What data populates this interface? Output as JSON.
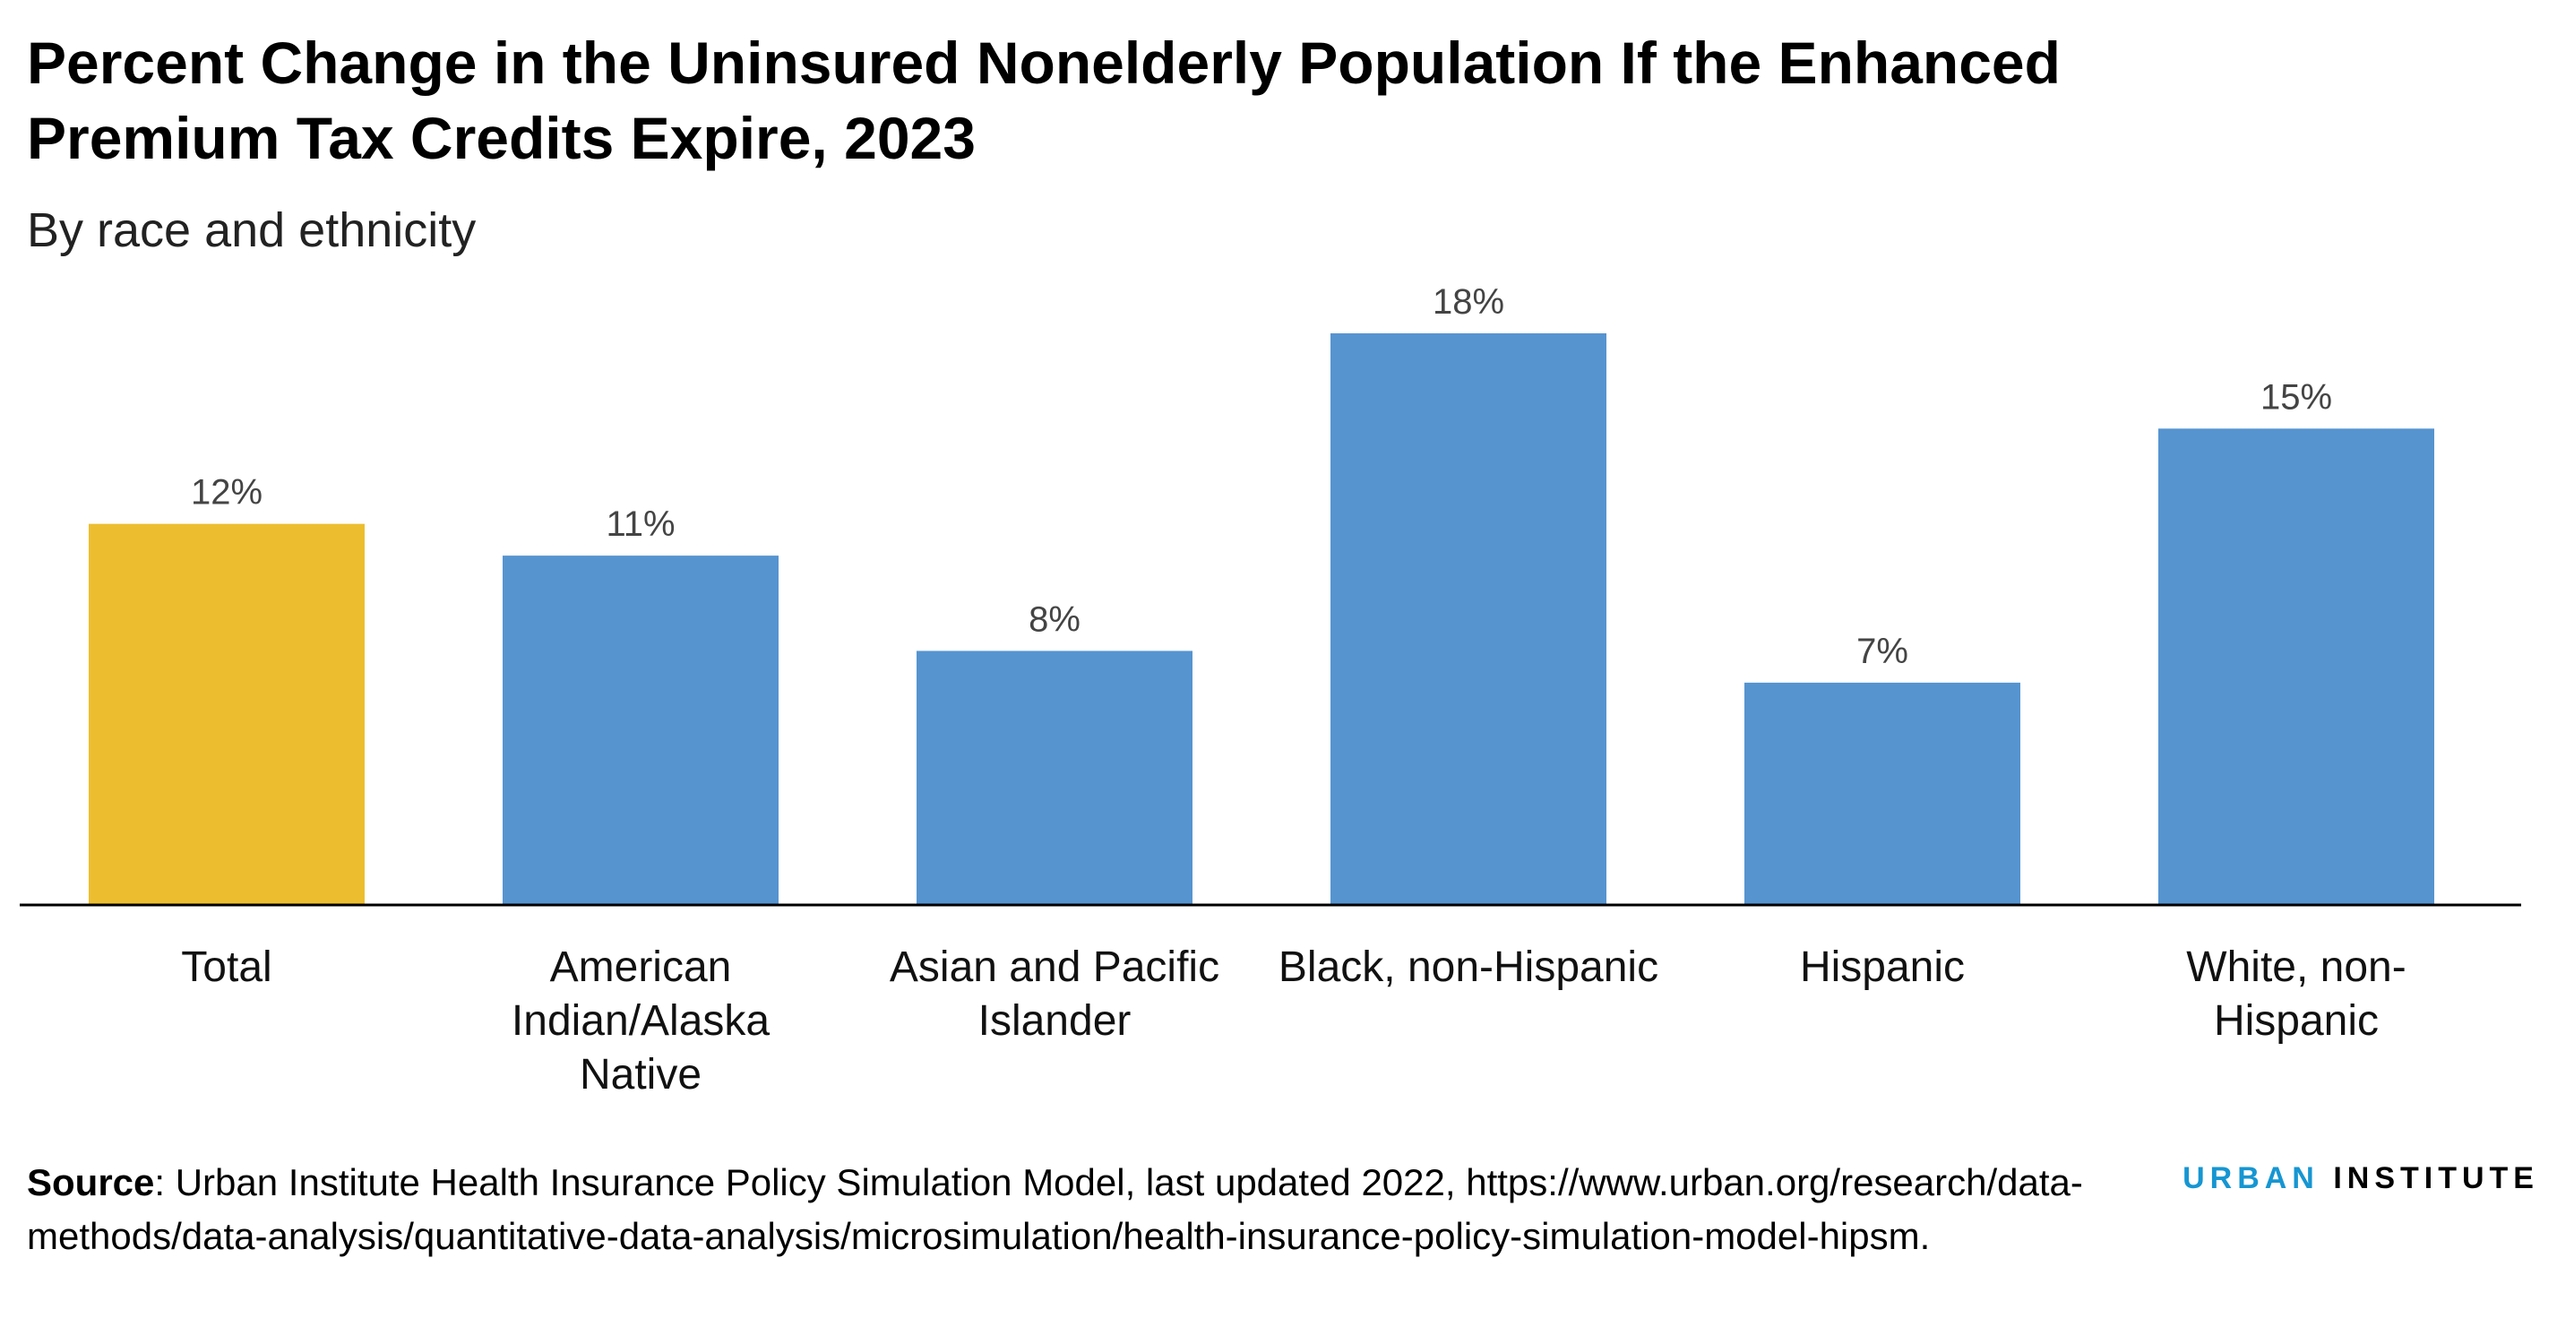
{
  "title": "Percent Change in the Uninsured Nonelderly Population If the Enhanced Premium Tax Credits Expire, 2023",
  "subtitle": "By race and ethnicity",
  "source_label": "Source",
  "source_text": ": Urban Institute Health Insurance Policy Simulation Model, last updated 2022, https://www.urban.org/research/data-methods/data-analysis/quantitative-data-analysis/microsimulation/health-insurance-policy-simulation-model-hipsm.",
  "logo": {
    "part1": "URBAN",
    "part2": "INSTITUTE"
  },
  "colors": {
    "total": "#ecbe2f",
    "group": "#5694d0",
    "axis": "#000000"
  },
  "chart_data": {
    "type": "bar",
    "categories": [
      "Total",
      "American Indian/Alaska Native",
      "Asian and Pacific Islander",
      "Black, non-Hispanic",
      "Hispanic",
      "White, non-Hispanic"
    ],
    "category_display": [
      "Total",
      "American\nIndian/Alaska\nNative",
      "Asian and Pacific\nIslander",
      "Black, non-Hispanic",
      "Hispanic",
      "White, non-\nHispanic"
    ],
    "values": [
      12,
      11,
      8,
      18,
      7,
      15
    ],
    "value_labels": [
      "12%",
      "11%",
      "8%",
      "18%",
      "7%",
      "15%"
    ],
    "highlight_index": 0,
    "ylim": [
      0,
      18
    ],
    "grid": false,
    "legend": "none"
  }
}
